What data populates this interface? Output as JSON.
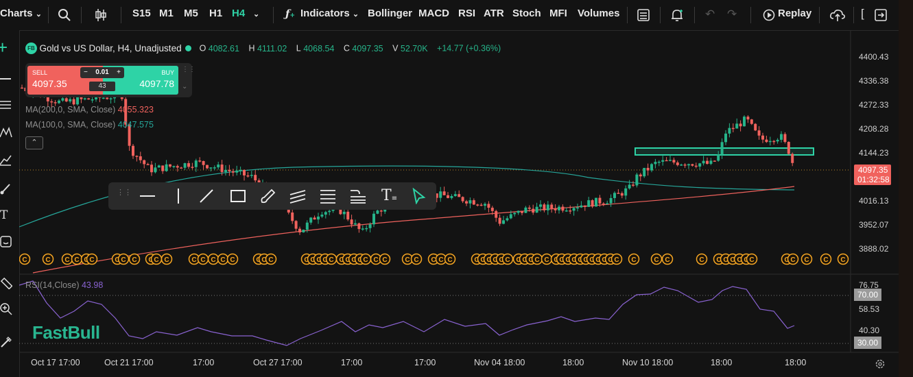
{
  "toolbar": {
    "charts_label": "Charts",
    "timeframes": [
      "S15",
      "M1",
      "M5",
      "H1",
      "H4"
    ],
    "active_timeframe": "H4",
    "indicators_label": "Indicators",
    "indicator_shortcuts": [
      "Bollinger",
      "MACD",
      "RSI",
      "ATR",
      "Stoch",
      "MFI",
      "Volumes"
    ],
    "replay_label": "Replay"
  },
  "symbol": {
    "badge": "FB",
    "title": "Gold vs US Dollar, H4, Unadjusted",
    "o_label": "O",
    "o_value": "4082.61",
    "h_label": "H",
    "h_value": "4111.02",
    "l_label": "L",
    "l_value": "4068.54",
    "c_label": "C",
    "c_value": "4097.35",
    "v_label": "V",
    "v_value": "52.70K",
    "change": "+14.77 (+0.36%)"
  },
  "trade_panel": {
    "sell_label": "SELL",
    "sell_price": "4097.35",
    "buy_label": "BUY",
    "buy_price": "4097.78",
    "qty": "0.01",
    "spread": "43"
  },
  "indicators": {
    "ma200_label": "MA(200,0, SMA, Close)",
    "ma200_value": "4055.323",
    "ma100_label": "MA(100,0, SMA, Close)",
    "ma100_value": "4047.575",
    "rsi_label": "RSI(14,Close)",
    "rsi_value": "43.98"
  },
  "price_axis": [
    "4400.43",
    "4336.38",
    "4272.33",
    "4208.28",
    "4144.23",
    "4016.13",
    "3952.07",
    "3888.02"
  ],
  "current_price": "4097.35",
  "countdown": "01:32:58",
  "rsi_axis": {
    "top": "76.75",
    "upper": "70.00",
    "mid": "58.53",
    "low": "40.30",
    "lower": "30.00"
  },
  "time_axis": [
    "Oct 17 17:00",
    "Oct 21 17:00",
    "17:00",
    "Oct 27 17:00",
    "17:00",
    "17:00",
    "Nov 04 18:00",
    "18:00",
    "Nov 10 18:00",
    "18:00",
    "18:00"
  ],
  "watermark": "FastBull",
  "colors": {
    "up": "#26b48a",
    "down": "#f0625d",
    "accent": "#2ed3a6",
    "ma200": "#f0625d",
    "ma100": "#26a69a",
    "rsi": "#8a63d2",
    "event": "#f5a623"
  }
}
